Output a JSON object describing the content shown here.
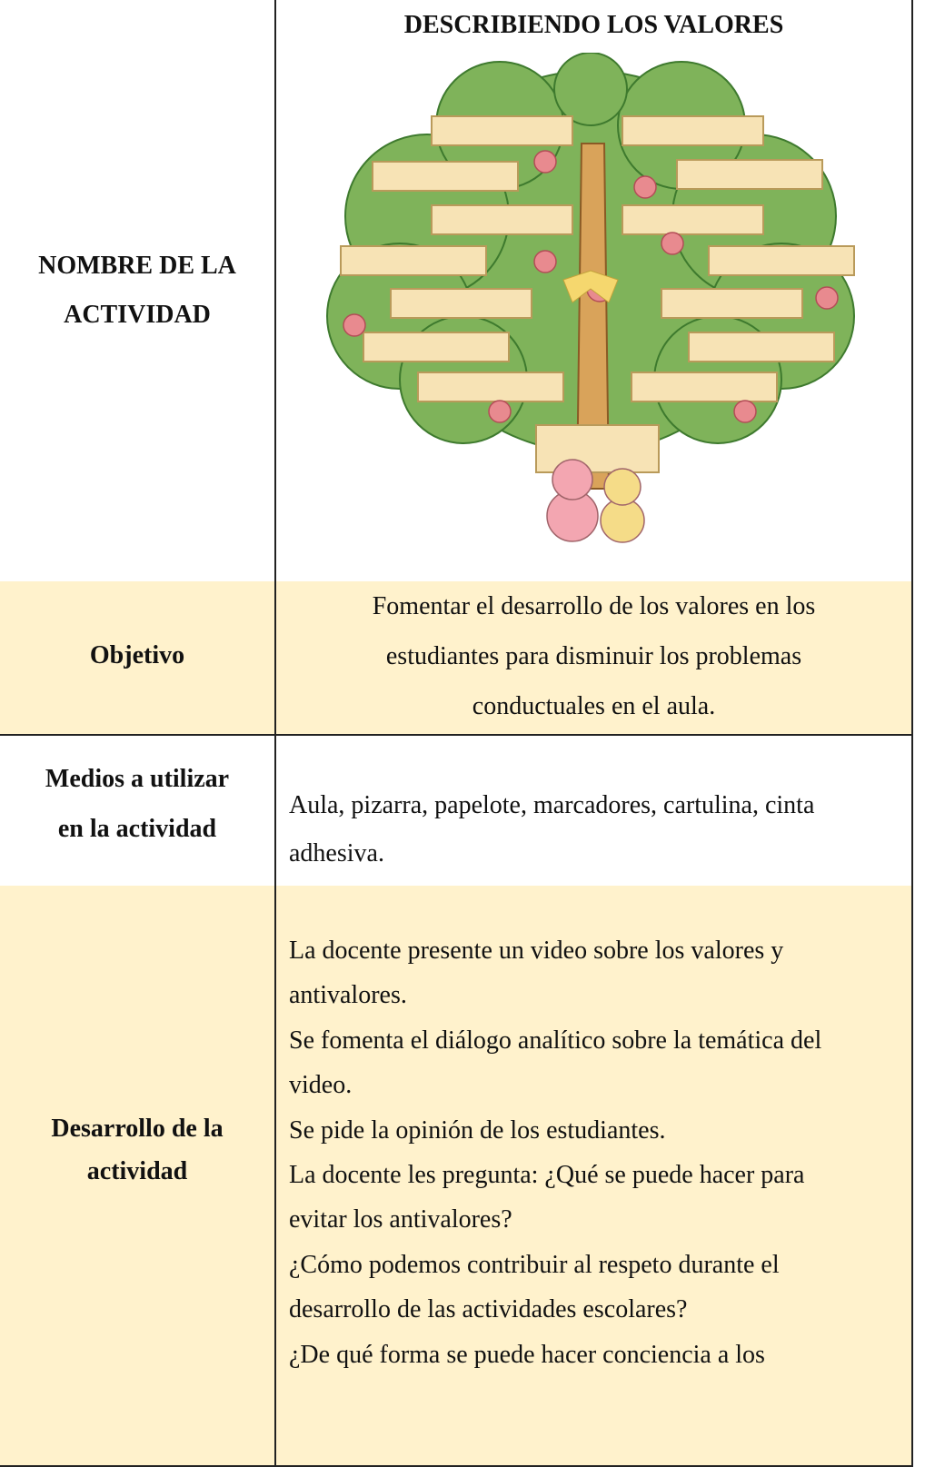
{
  "header": {
    "title": "DESCRIBIENDO LOS VALORES"
  },
  "table": {
    "rows": [
      {
        "label": [
          "NOMBRE DE LA",
          "ACTIVIDAD"
        ]
      },
      {
        "label": [
          "Objetivo"
        ],
        "content": [
          "Fomentar el desarrollo de los valores en los",
          "estudiantes para disminuir los problemas",
          "conductuales en el aula."
        ]
      },
      {
        "label": [
          "Medios a utilizar",
          "en la actividad"
        ],
        "content": [
          "Aula, pizarra, papelote, marcadores, cartulina, cinta",
          "adhesiva."
        ]
      },
      {
        "label": [
          "Desarrollo de la",
          "actividad"
        ],
        "content": [
          "La docente presente un video sobre los valores y",
          "antivalores.",
          "Se fomenta el diálogo analítico sobre la temática del",
          "video.",
          "Se pide la opinión de los estudiantes.",
          "La docente les pregunta: ¿Qué se puede hacer para",
          "evitar los antivalores?",
          "¿Cómo podemos contribuir al respeto durante el",
          "desarrollo de las actividades escolares?",
          "¿De qué forma se puede hacer conciencia a los"
        ]
      }
    ]
  }
}
